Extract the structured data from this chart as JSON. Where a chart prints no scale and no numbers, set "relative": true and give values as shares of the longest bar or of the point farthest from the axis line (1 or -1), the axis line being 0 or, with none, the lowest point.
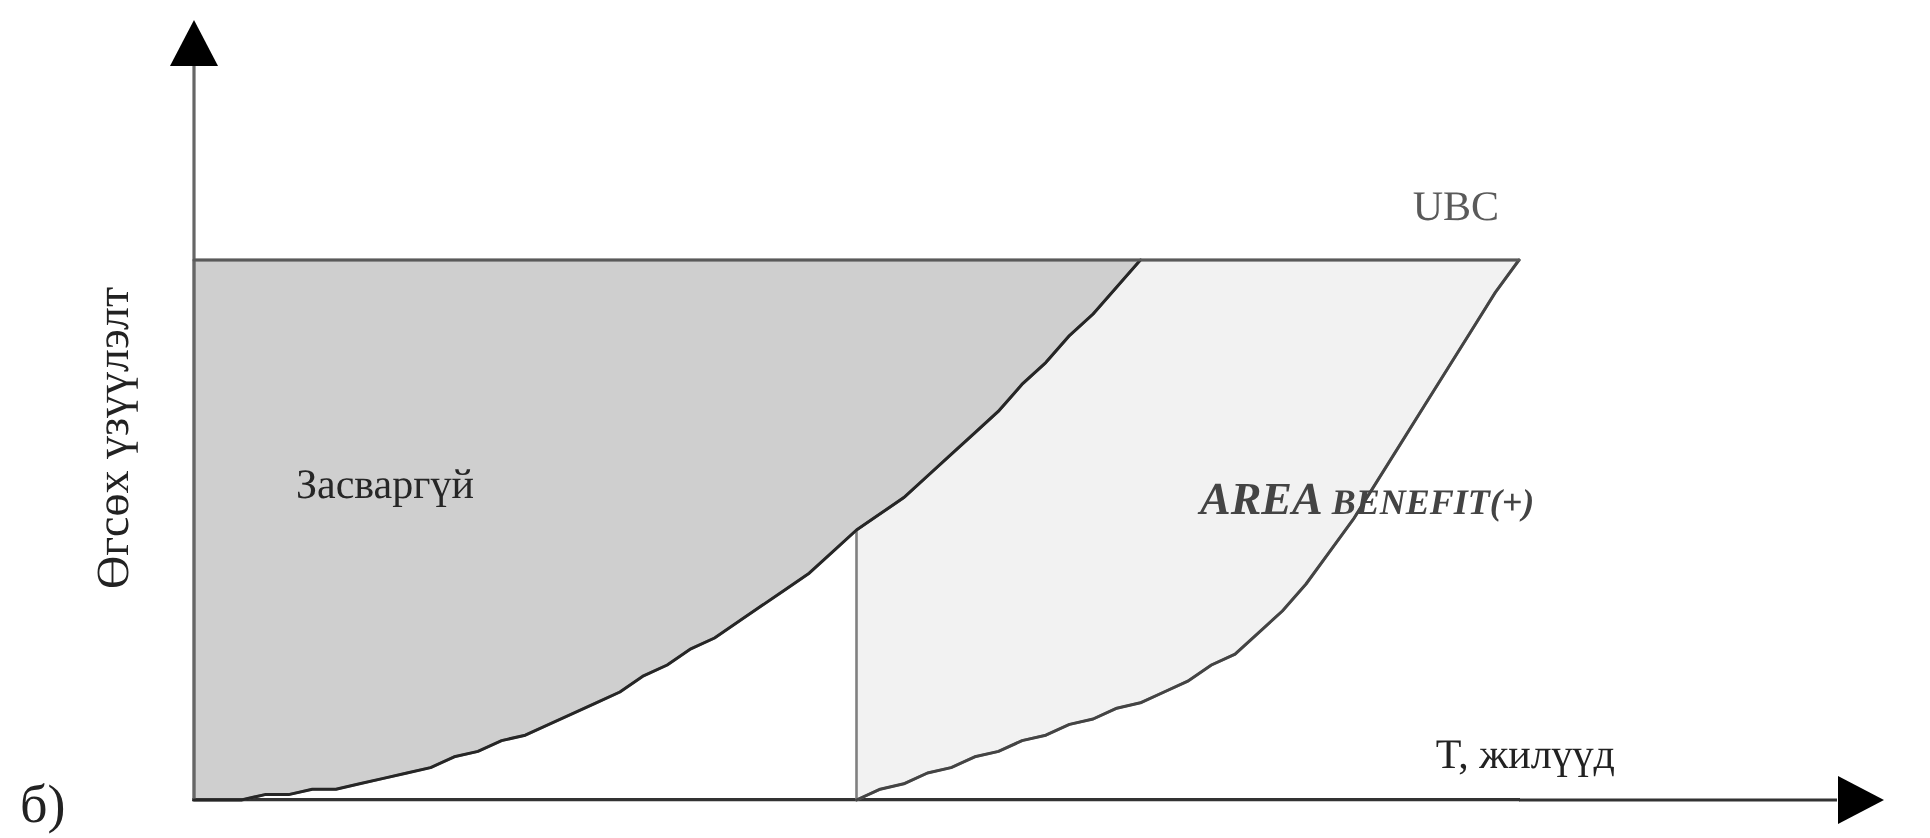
{
  "chart_data": {
    "type": "line",
    "relative": true,
    "xlabel": "T, жилүүд",
    "ylabel": "Өгсөх үзүүлэлт",
    "annotations": [
      "б)"
    ],
    "categories": [
      null,
      null,
      null,
      null,
      null,
      null,
      null,
      null,
      null,
      null,
      null,
      null,
      null,
      null,
      null,
      null,
      null,
      null,
      null,
      null,
      null,
      null,
      null,
      null,
      null,
      null,
      null,
      null,
      null,
      null,
      null,
      null,
      null,
      null,
      null,
      null,
      null,
      null,
      null,
      null,
      null,
      null,
      null,
      null,
      null,
      null,
      null,
      null,
      null,
      null,
      null,
      null,
      null,
      null,
      null,
      null,
      null
    ],
    "series": [
      {
        "name": "UBC",
        "color": "#5a5a5a",
        "values": [
          1,
          1,
          1,
          1,
          1,
          1,
          1,
          1,
          1,
          1,
          1,
          1,
          1,
          1,
          1,
          1,
          1,
          1,
          1,
          1,
          1,
          1,
          1,
          1,
          1,
          1,
          1,
          1,
          1,
          1,
          1,
          1,
          1,
          1,
          1,
          1,
          1,
          1,
          1,
          1,
          1,
          1,
          1,
          1,
          1,
          1,
          1,
          1,
          1,
          1,
          1,
          1,
          1,
          1,
          1,
          1,
          1
        ]
      },
      {
        "name": "Засваргүй",
        "color": "#262626",
        "values": [
          0,
          0,
          0,
          0.01,
          0.01,
          0.02,
          0.02,
          0.03,
          0.04,
          0.05,
          0.06,
          0.08,
          0.09,
          0.11,
          0.12,
          0.14,
          0.16,
          0.18,
          0.2,
          0.23,
          0.25,
          0.28,
          0.3,
          0.33,
          0.36,
          0.39,
          0.42,
          0.46,
          0.5,
          0.53,
          0.56,
          0.6,
          0.64,
          0.68,
          0.72,
          0.77,
          0.81,
          0.86,
          0.9,
          0.95,
          1,
          null,
          null,
          null,
          null,
          null,
          null,
          null,
          null,
          null,
          null,
          null,
          null,
          null,
          null,
          null,
          null
        ],
        "lower": [
          0,
          0,
          0,
          0.01,
          0.01,
          0.02,
          0.02,
          0.03,
          0.04,
          0.05,
          0.06,
          0.08,
          0.09,
          0.11,
          0.12,
          0.14,
          0.16,
          0.18,
          0.2,
          0.23,
          0.25,
          0.28,
          0.3,
          0.33,
          0.36,
          0.39,
          0.42,
          0.46,
          0.5,
          0.53,
          0.56,
          0.6,
          0.64,
          0.68,
          0.72,
          0.77,
          0.81,
          0.86,
          0.9,
          0.95,
          1,
          null,
          null,
          null,
          null,
          null,
          null,
          null,
          null,
          null,
          null,
          null,
          null,
          null,
          null,
          null,
          null
        ],
        "upper": [
          1,
          1,
          1,
          1,
          1,
          1,
          1,
          1,
          1,
          1,
          1,
          1,
          1,
          1,
          1,
          1,
          1,
          1,
          1,
          1,
          1,
          1,
          1,
          1,
          1,
          1,
          1,
          1,
          1,
          1,
          1,
          1,
          1,
          1,
          1,
          1,
          1,
          1,
          1,
          1,
          1,
          null,
          null,
          null,
          null,
          null,
          null,
          null,
          null,
          null,
          null,
          null,
          null,
          null,
          null,
          null,
          null
        ]
      },
      {
        "name": "AREA BENEFIT(+)",
        "color": "#444444",
        "values": [
          null,
          null,
          null,
          null,
          null,
          null,
          null,
          null,
          null,
          null,
          null,
          null,
          null,
          null,
          null,
          null,
          null,
          null,
          null,
          null,
          null,
          null,
          null,
          null,
          null,
          null,
          null,
          null,
          0,
          0.02,
          0.03,
          0.05,
          0.06,
          0.08,
          0.09,
          0.11,
          0.12,
          0.14,
          0.15,
          0.17,
          0.18,
          0.2,
          0.22,
          0.25,
          0.27,
          0.31,
          0.35,
          0.4,
          0.46,
          0.52,
          0.59,
          0.66,
          0.73,
          0.8,
          0.87,
          0.94,
          1
        ],
        "lower": [
          null,
          null,
          null,
          null,
          null,
          null,
          null,
          null,
          null,
          null,
          null,
          null,
          null,
          null,
          null,
          null,
          null,
          null,
          null,
          null,
          null,
          null,
          null,
          null,
          null,
          null,
          null,
          null,
          0,
          0.02,
          0.03,
          0.05,
          0.06,
          0.08,
          0.09,
          0.11,
          0.12,
          0.14,
          0.15,
          0.17,
          0.18,
          0.2,
          0.22,
          0.25,
          0.27,
          0.31,
          0.35,
          0.4,
          0.46,
          0.52,
          0.59,
          0.66,
          0.73,
          0.8,
          0.87,
          0.94,
          1
        ],
        "upper": [
          null,
          null,
          null,
          null,
          null,
          null,
          null,
          null,
          null,
          null,
          null,
          null,
          null,
          null,
          null,
          null,
          null,
          null,
          null,
          null,
          null,
          null,
          null,
          null,
          null,
          null,
          null,
          null,
          0.5,
          0.53,
          0.56,
          0.6,
          0.64,
          0.68,
          0.72,
          0.77,
          0.81,
          0.86,
          0.9,
          0.95,
          1,
          1,
          1,
          1,
          1,
          1,
          1,
          1,
          1,
          1,
          1,
          1,
          1,
          1,
          1,
          1,
          1
        ]
      }
    ]
  }
}
